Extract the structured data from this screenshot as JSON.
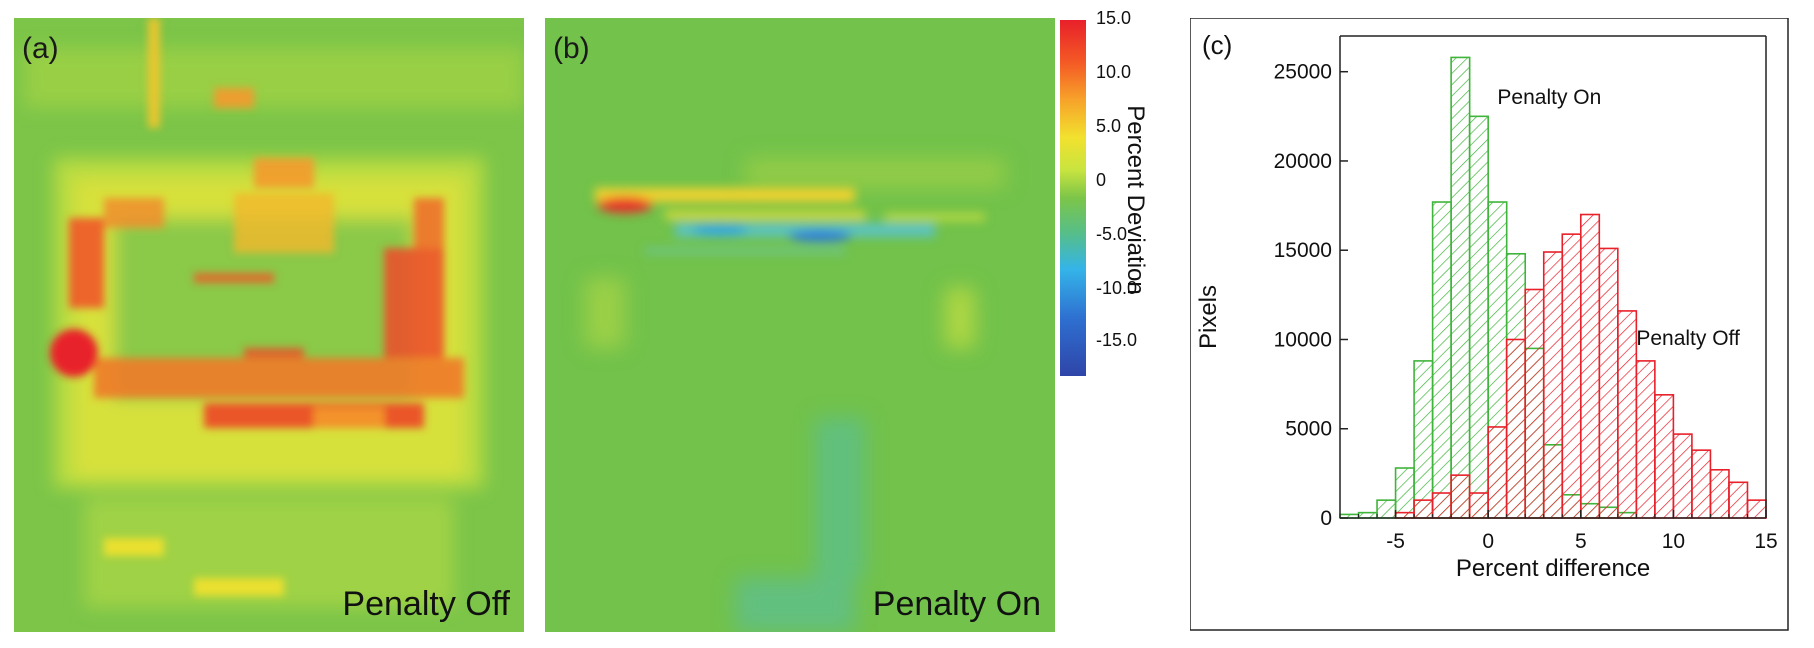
{
  "panels": {
    "a": {
      "label": "(a)",
      "caption": "Penalty Off"
    },
    "b": {
      "label": "(b)",
      "caption": "Penalty On"
    }
  },
  "colorbar": {
    "title": "Percent Deviation",
    "ticks": [
      "15.0",
      "10.0",
      "5.0",
      "0",
      "-5.0",
      "-10.0",
      "-15.0"
    ],
    "colors": [
      "#e8202a",
      "#f7a02a",
      "#f2e12e",
      "#7cc549",
      "#34b4e8",
      "#2e6fd0",
      "#2f45a8"
    ]
  },
  "chart_data": {
    "type": "bar",
    "panel_label": "(c)",
    "xlabel": "Percent difference",
    "ylabel": "Pixels",
    "xlim": [
      -8,
      15
    ],
    "ylim": [
      0,
      27000
    ],
    "xticks": [
      "-5",
      "0",
      "5",
      "10",
      "15"
    ],
    "yticks": [
      "0",
      "5000",
      "10000",
      "15000",
      "20000",
      "25000"
    ],
    "bin_width": 1,
    "series": [
      {
        "name": "Penalty On",
        "color": "#3fb43a",
        "bin_starts": [
          -8,
          -7,
          -6,
          -5,
          -4,
          -3,
          -2,
          -1,
          0,
          1,
          2,
          3,
          4,
          5,
          6,
          7
        ],
        "values": [
          200,
          300,
          1000,
          2800,
          8800,
          17700,
          25800,
          22500,
          17700,
          14800,
          9500,
          4100,
          1300,
          800,
          600,
          300
        ]
      },
      {
        "name": "Penalty Off",
        "color": "#e8202a",
        "bin_starts": [
          -5,
          -4,
          -3,
          -2,
          -1,
          0,
          1,
          2,
          3,
          4,
          5,
          6,
          7,
          8,
          9,
          10,
          11,
          12,
          13,
          14
        ],
        "values": [
          300,
          1000,
          1400,
          2400,
          1400,
          5100,
          10000,
          12800,
          14900,
          15900,
          17000,
          15100,
          11600,
          8800,
          6900,
          4700,
          3800,
          2700,
          2000,
          1000
        ]
      }
    ]
  }
}
